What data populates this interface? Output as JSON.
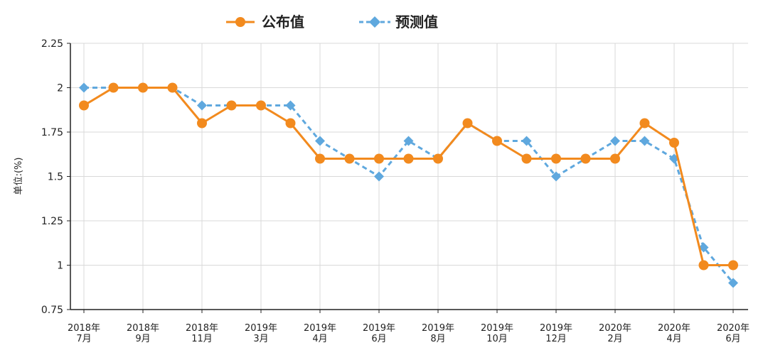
{
  "chart_data": {
    "type": "line",
    "ylabel": "单位:(%)",
    "ylim": [
      0.75,
      2.25
    ],
    "yticks": [
      "0.75",
      "1",
      "1.25",
      "1.5",
      "1.75",
      "2",
      "2.25"
    ],
    "ytick_values": [
      0.75,
      1,
      1.25,
      1.5,
      1.75,
      2,
      2.25
    ],
    "grid": true,
    "legend_position": "top-center",
    "x_tick_labels": [
      {
        "year": "2018年",
        "month": "7月"
      },
      {
        "year": "2018年",
        "month": "9月"
      },
      {
        "year": "2018年",
        "month": "11月"
      },
      {
        "year": "2019年",
        "month": "3月"
      },
      {
        "year": "2019年",
        "month": "4月"
      },
      {
        "year": "2019年",
        "month": "6月"
      },
      {
        "year": "2019年",
        "month": "8月"
      },
      {
        "year": "2019年",
        "month": "10月"
      },
      {
        "year": "2019年",
        "month": "12月"
      },
      {
        "year": "2020年",
        "month": "2月"
      },
      {
        "year": "2020年",
        "month": "4月"
      },
      {
        "year": "2020年",
        "month": "6月"
      }
    ],
    "series": [
      {
        "name": "公布值",
        "color": "#f28a1e",
        "style": "solid",
        "marker": "circle",
        "values": [
          1.9,
          2.0,
          2.0,
          2.0,
          1.8,
          1.9,
          1.9,
          1.8,
          1.6,
          1.6,
          1.6,
          1.6,
          1.6,
          1.8,
          1.7,
          1.6,
          1.6,
          1.6,
          1.6,
          1.8,
          1.69,
          1.0,
          1.0
        ]
      },
      {
        "name": "预测值",
        "color": "#5fa8de",
        "style": "dashed",
        "marker": "diamond",
        "values": [
          2.0,
          2.0,
          2.0,
          2.0,
          1.9,
          1.9,
          1.9,
          1.9,
          1.7,
          1.6,
          1.5,
          1.7,
          1.6,
          1.8,
          1.7,
          1.7,
          1.5,
          1.6,
          1.7,
          1.7,
          1.6,
          1.1,
          0.9
        ]
      }
    ]
  }
}
